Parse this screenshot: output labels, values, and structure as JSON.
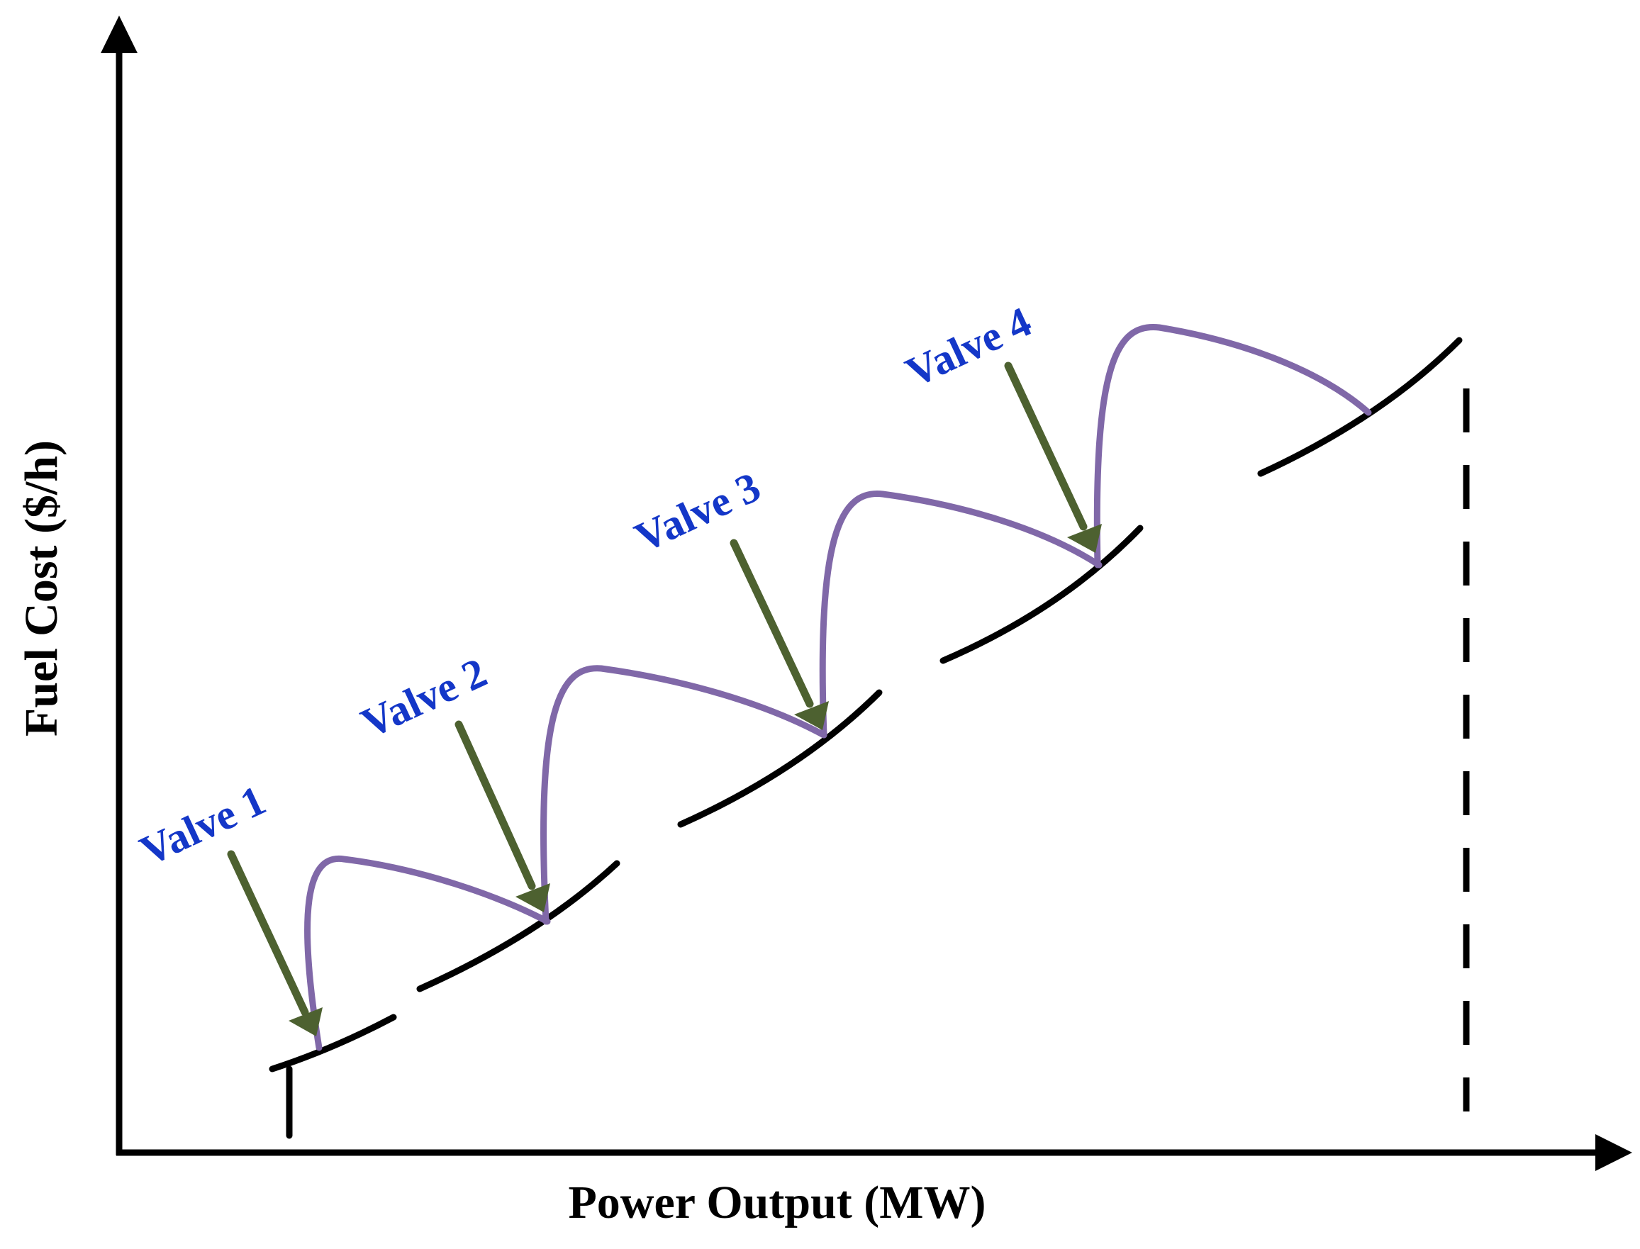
{
  "axes": {
    "x_label": "Power Output (MW)",
    "y_label": "Fuel Cost ($/h)"
  },
  "valves": [
    {
      "label": "Valve 1"
    },
    {
      "label": "Valve 2"
    },
    {
      "label": "Valve 3"
    },
    {
      "label": "Valve 4"
    }
  ],
  "colors": {
    "axis": "#000000",
    "cost_curve": "#000000",
    "valve_point_curve": "#8068a8",
    "arrow": "#4d6130",
    "label": "#1437c8"
  }
}
